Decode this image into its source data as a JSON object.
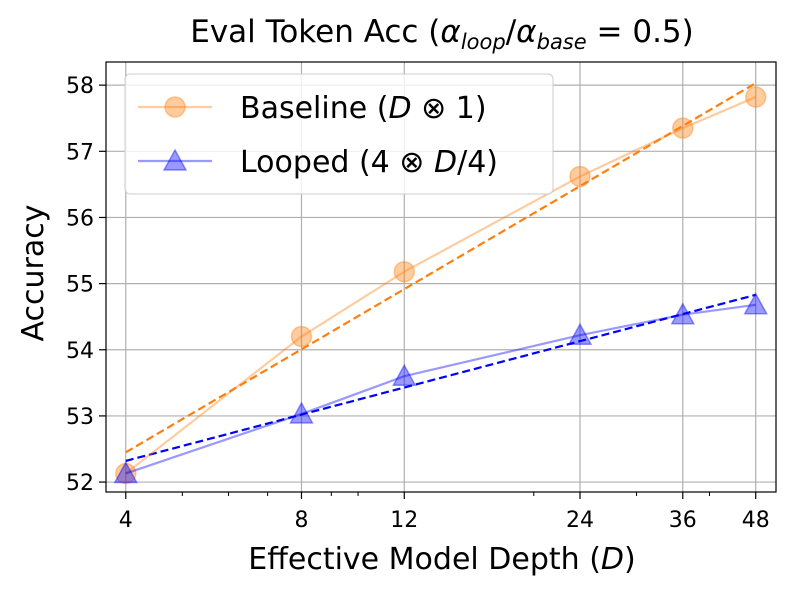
{
  "chart_data": {
    "type": "line",
    "title": {
      "prefix": "Eval Token Acc (",
      "alpha1": "α",
      "sub1": "loop",
      "slash": "/",
      "alpha2": "α",
      "sub2": "base",
      "suffix": " = 0.5)"
    },
    "xlabel": {
      "text": "Effective Model Depth (",
      "var": "D",
      "close": ")"
    },
    "ylabel": "Accuracy",
    "x_scale": "log",
    "xlim": [
      3.7,
      52
    ],
    "ylim": [
      51.85,
      58.35
    ],
    "x_ticks": [
      4,
      8,
      12,
      24,
      36,
      48
    ],
    "x_tick_labels": [
      "4",
      "8",
      "12",
      "24",
      "36",
      "48"
    ],
    "y_ticks": [
      52,
      53,
      54,
      55,
      56,
      57,
      58
    ],
    "y_tick_labels": [
      "52",
      "53",
      "54",
      "55",
      "56",
      "57",
      "58"
    ],
    "grid": true,
    "legend": "top-left",
    "series": [
      {
        "name": "Baseline (D ⊗ 1)",
        "legend_label": {
          "prefix": "Baseline (",
          "var": "D",
          "op": " ⊗ 1)"
        },
        "color": "#ff7f0e",
        "marker": "circle",
        "x": [
          4,
          8,
          12,
          24,
          36,
          48
        ],
        "values": [
          52.13,
          54.2,
          55.18,
          56.62,
          57.35,
          57.82
        ],
        "fit": {
          "x": [
            4,
            48
          ],
          "y": [
            52.45,
            58.03
          ]
        }
      },
      {
        "name": "Looped (4 ⊗ D/4)",
        "legend_label": {
          "prefix": "Looped (4 ⊗ ",
          "var": "D",
          "op": "/4)"
        },
        "color": "#0000ff",
        "marker": "triangle",
        "x": [
          4,
          8,
          12,
          24,
          36,
          48
        ],
        "values": [
          52.13,
          53.03,
          53.6,
          54.22,
          54.53,
          54.68
        ],
        "fit": {
          "x": [
            4,
            48
          ],
          "y": [
            52.32,
            54.83
          ]
        }
      }
    ]
  }
}
